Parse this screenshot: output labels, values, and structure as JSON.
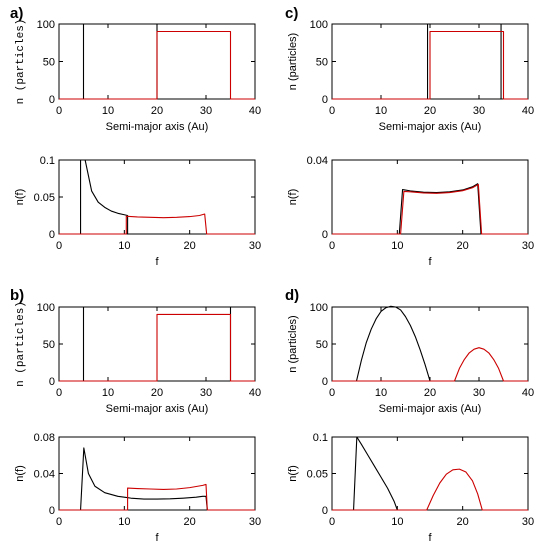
{
  "chart_data": [
    {
      "type": "line",
      "panel_label": "a)",
      "xlabel": "Semi-major axis (Au)",
      "ylabel": "n (particles)",
      "xlim": [
        0,
        40
      ],
      "ylim": [
        0,
        100
      ],
      "xticks": [
        0,
        10,
        20,
        30,
        40
      ],
      "yticks": [
        0,
        50,
        100
      ],
      "series": [
        {
          "color": "#000000",
          "points": [
            [
              0,
              0
            ],
            [
              5,
              0
            ],
            [
              5,
              100
            ],
            [
              20,
              100
            ],
            [
              20,
              0
            ],
            [
              40,
              0
            ]
          ]
        },
        {
          "color": "#cc0000",
          "points": [
            [
              0,
              0
            ],
            [
              20,
              0
            ],
            [
              20,
              90
            ],
            [
              35,
              90
            ],
            [
              35,
              0
            ],
            [
              40,
              0
            ]
          ]
        }
      ]
    },
    {
      "type": "line",
      "panel_label": "",
      "xlabel": "f",
      "ylabel": "n(f)",
      "xlim": [
        0,
        30
      ],
      "ylim": [
        0,
        0.1
      ],
      "xticks": [
        0,
        10,
        20,
        30
      ],
      "yticks": [
        0,
        0.05,
        0.1
      ],
      "series": [
        {
          "color": "#000000",
          "points": [
            [
              0,
              0
            ],
            [
              3.3,
              0
            ],
            [
              3.3,
              0.1
            ],
            [
              4,
              0.1
            ],
            [
              5,
              0.058
            ],
            [
              6,
              0.043
            ],
            [
              7,
              0.036
            ],
            [
              8,
              0.031
            ],
            [
              9,
              0.028
            ],
            [
              10,
              0.026
            ],
            [
              10.5,
              0.025
            ],
            [
              10.5,
              0
            ],
            [
              30,
              0
            ]
          ]
        },
        {
          "color": "#cc0000",
          "points": [
            [
              0,
              0
            ],
            [
              10.3,
              0
            ],
            [
              10.3,
              0.024
            ],
            [
              12,
              0.023
            ],
            [
              14,
              0.0225
            ],
            [
              16,
              0.022
            ],
            [
              18,
              0.0225
            ],
            [
              20,
              0.0235
            ],
            [
              21.5,
              0.025
            ],
            [
              22.3,
              0.027
            ],
            [
              22.6,
              0
            ],
            [
              30,
              0
            ]
          ]
        }
      ]
    },
    {
      "type": "line",
      "panel_label": "b)",
      "xlabel": "Semi-major axis (Au)",
      "ylabel": "n (particles)",
      "xlim": [
        0,
        40
      ],
      "ylim": [
        0,
        100
      ],
      "xticks": [
        0,
        10,
        20,
        30,
        40
      ],
      "yticks": [
        0,
        50,
        100
      ],
      "series": [
        {
          "color": "#000000",
          "points": [
            [
              0,
              0
            ],
            [
              5,
              0
            ],
            [
              5,
              100
            ],
            [
              35,
              100
            ],
            [
              35,
              0
            ],
            [
              40,
              0
            ]
          ]
        },
        {
          "color": "#cc0000",
          "points": [
            [
              0,
              0
            ],
            [
              20,
              0
            ],
            [
              20,
              90
            ],
            [
              35,
              90
            ],
            [
              35,
              0
            ],
            [
              40,
              0
            ]
          ]
        }
      ]
    },
    {
      "type": "line",
      "panel_label": "",
      "xlabel": "f",
      "ylabel": "n(f)",
      "xlim": [
        0,
        30
      ],
      "ylim": [
        0,
        0.08
      ],
      "xticks": [
        0,
        10,
        20,
        30
      ],
      "yticks": [
        0,
        0.04,
        0.08
      ],
      "series": [
        {
          "color": "#000000",
          "points": [
            [
              0,
              0
            ],
            [
              3.3,
              0
            ],
            [
              3.8,
              0.068
            ],
            [
              4.5,
              0.04
            ],
            [
              5.5,
              0.026
            ],
            [
              7,
              0.019
            ],
            [
              9,
              0.015
            ],
            [
              11,
              0.013
            ],
            [
              13,
              0.012
            ],
            [
              15,
              0.012
            ],
            [
              17,
              0.0123
            ],
            [
              19,
              0.013
            ],
            [
              21,
              0.014
            ],
            [
              22,
              0.015
            ],
            [
              22.5,
              0.015
            ],
            [
              22.7,
              0
            ],
            [
              30,
              0
            ]
          ]
        },
        {
          "color": "#cc0000",
          "points": [
            [
              0,
              0
            ],
            [
              10.5,
              0
            ],
            [
              10.5,
              0.024
            ],
            [
              12,
              0.0235
            ],
            [
              14,
              0.023
            ],
            [
              16,
              0.0225
            ],
            [
              18,
              0.023
            ],
            [
              20,
              0.0245
            ],
            [
              22,
              0.027
            ],
            [
              22.5,
              0.028
            ],
            [
              22.7,
              0
            ],
            [
              30,
              0
            ]
          ]
        }
      ]
    },
    {
      "type": "line",
      "panel_label": "c)",
      "xlabel": "Semi-major axis (Au)",
      "ylabel": "n (particles)",
      "xlim": [
        0,
        40
      ],
      "ylim": [
        0,
        100
      ],
      "xticks": [
        0,
        10,
        20,
        30,
        40
      ],
      "yticks": [
        0,
        50,
        100
      ],
      "series": [
        {
          "color": "#000000",
          "points": [
            [
              0,
              0
            ],
            [
              19.5,
              0
            ],
            [
              19.5,
              100
            ],
            [
              34.5,
              100
            ],
            [
              34.5,
              0
            ],
            [
              40,
              0
            ]
          ]
        },
        {
          "color": "#cc0000",
          "points": [
            [
              0,
              0
            ],
            [
              20,
              0
            ],
            [
              20,
              90
            ],
            [
              35,
              90
            ],
            [
              35,
              0
            ],
            [
              40,
              0
            ]
          ]
        }
      ]
    },
    {
      "type": "line",
      "panel_label": "",
      "xlabel": "f",
      "ylabel": "n(f)",
      "xlim": [
        0,
        30
      ],
      "ylim": [
        0,
        0.04
      ],
      "xticks": [
        0,
        10,
        20,
        30
      ],
      "yticks": [
        0,
        0.04
      ],
      "series": [
        {
          "color": "#000000",
          "points": [
            [
              0,
              0
            ],
            [
              10.3,
              0
            ],
            [
              10.8,
              0.024
            ],
            [
              12,
              0.0233
            ],
            [
              14,
              0.0226
            ],
            [
              16,
              0.0224
            ],
            [
              18,
              0.0228
            ],
            [
              20,
              0.0238
            ],
            [
              21.5,
              0.0255
            ],
            [
              22.3,
              0.0272
            ],
            [
              22.8,
              0
            ],
            [
              30,
              0
            ]
          ]
        },
        {
          "color": "#cc0000",
          "points": [
            [
              0,
              0
            ],
            [
              10.5,
              0
            ],
            [
              11,
              0.023
            ],
            [
              12,
              0.0228
            ],
            [
              14,
              0.0222
            ],
            [
              16,
              0.022
            ],
            [
              18,
              0.0224
            ],
            [
              20,
              0.0234
            ],
            [
              21.5,
              0.025
            ],
            [
              22.4,
              0.0268
            ],
            [
              22.9,
              0
            ],
            [
              30,
              0
            ]
          ]
        }
      ]
    },
    {
      "type": "line",
      "panel_label": "d)",
      "xlabel": "Semi-major axis (Au)",
      "ylabel": "n (particles)",
      "xlim": [
        0,
        40
      ],
      "ylim": [
        0,
        100
      ],
      "xticks": [
        0,
        10,
        20,
        30,
        40
      ],
      "yticks": [
        0,
        50,
        100
      ],
      "series": [
        {
          "color": "#000000",
          "points": [
            [
              0,
              0
            ],
            [
              5,
              0
            ],
            [
              6,
              28
            ],
            [
              7,
              52
            ],
            [
              8,
              70
            ],
            [
              9,
              84
            ],
            [
              10,
              94
            ],
            [
              11,
              99
            ],
            [
              12,
              101
            ],
            [
              13,
              100
            ],
            [
              14,
              96
            ],
            [
              15,
              87
            ],
            [
              16,
              75
            ],
            [
              17,
              60
            ],
            [
              18,
              42
            ],
            [
              19,
              22
            ],
            [
              20,
              0
            ],
            [
              40,
              0
            ]
          ]
        },
        {
          "color": "#cc0000",
          "points": [
            [
              0,
              0
            ],
            [
              25,
              0
            ],
            [
              26,
              17
            ],
            [
              27,
              29
            ],
            [
              28,
              38
            ],
            [
              29,
              43
            ],
            [
              30,
              45
            ],
            [
              31,
              43
            ],
            [
              32,
              38
            ],
            [
              33,
              29
            ],
            [
              34,
              17
            ],
            [
              35,
              0
            ],
            [
              40,
              0
            ]
          ]
        }
      ]
    },
    {
      "type": "line",
      "panel_label": "",
      "xlabel": "f",
      "ylabel": "n(f)",
      "xlim": [
        0,
        30
      ],
      "ylim": [
        0,
        0.1
      ],
      "xticks": [
        0,
        10,
        20,
        30
      ],
      "yticks": [
        0,
        0.05,
        0.1
      ],
      "series": [
        {
          "color": "#000000",
          "points": [
            [
              0,
              0
            ],
            [
              3.3,
              0
            ],
            [
              3.8,
              0.1
            ],
            [
              4.5,
              0.09
            ],
            [
              5.5,
              0.075
            ],
            [
              6.5,
              0.06
            ],
            [
              7.5,
              0.045
            ],
            [
              8.5,
              0.03
            ],
            [
              9.5,
              0.012
            ],
            [
              10,
              0
            ],
            [
              30,
              0
            ]
          ]
        },
        {
          "color": "#cc0000",
          "points": [
            [
              0,
              0
            ],
            [
              14.5,
              0
            ],
            [
              15.5,
              0.02
            ],
            [
              16.5,
              0.037
            ],
            [
              17.5,
              0.049
            ],
            [
              18.5,
              0.055
            ],
            [
              19.5,
              0.056
            ],
            [
              20.5,
              0.052
            ],
            [
              21.5,
              0.04
            ],
            [
              22.3,
              0.022
            ],
            [
              23,
              0
            ],
            [
              30,
              0
            ]
          ]
        }
      ]
    }
  ]
}
